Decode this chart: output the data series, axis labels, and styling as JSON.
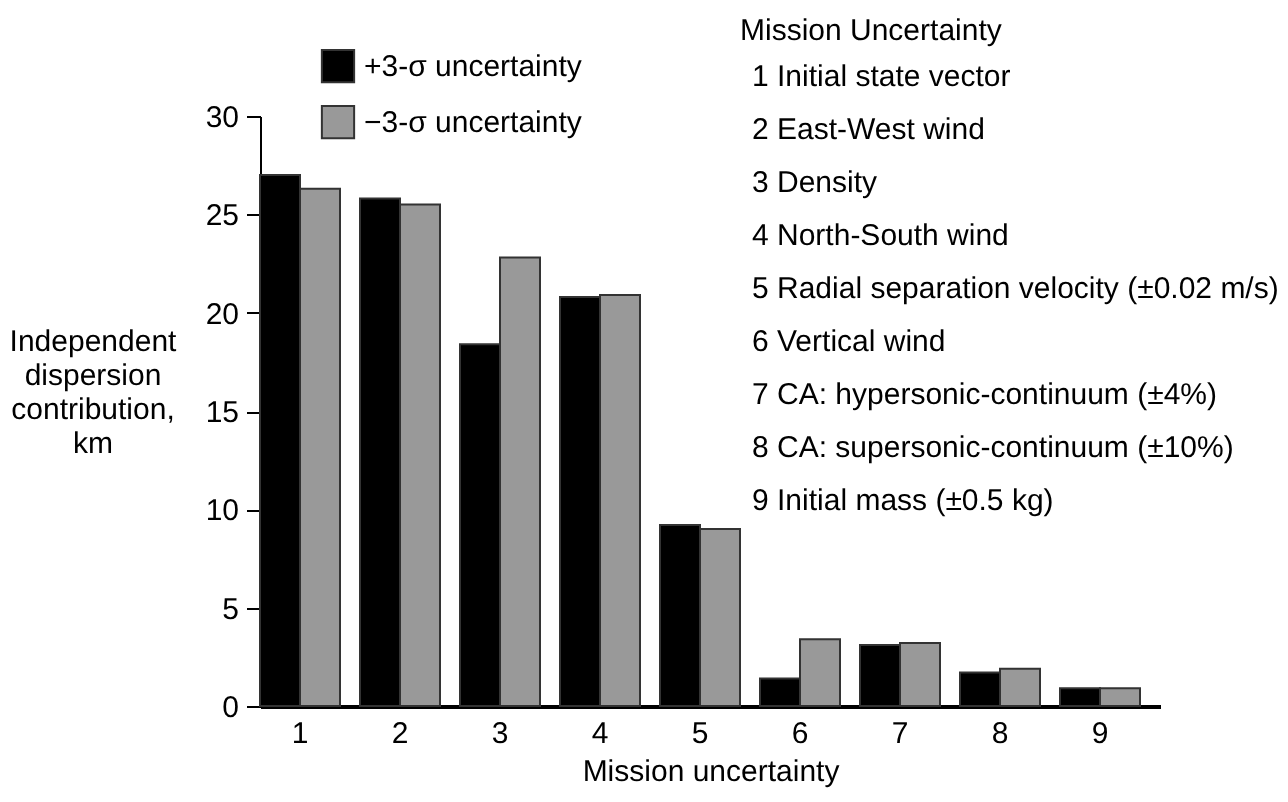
{
  "chart_data": {
    "type": "bar",
    "xlabel": "Mission uncertainty",
    "ylabel": "Independent dispersion contribution, km",
    "categories": [
      "1",
      "2",
      "3",
      "4",
      "5",
      "6",
      "7",
      "8",
      "9"
    ],
    "series": [
      {
        "name": "+3-σ uncertainty",
        "color": "#000000",
        "values": [
          27.0,
          25.8,
          18.4,
          20.8,
          9.2,
          1.4,
          3.1,
          1.7,
          0.9
        ]
      },
      {
        "name": "−3-σ uncertainty",
        "color": "#999999",
        "values": [
          26.3,
          25.5,
          22.8,
          20.9,
          9.0,
          3.4,
          3.2,
          1.9,
          0.9
        ]
      }
    ],
    "ylim": [
      0,
      30
    ],
    "yticks": [
      0,
      5,
      10,
      15,
      20,
      25,
      30
    ],
    "grid": false,
    "legend": "top left",
    "annotations": [
      "Mission Uncertainty",
      "1  Initial state vector",
      "2  East-West wind",
      "3  Density",
      "4  North-South wind",
      "5  Radial separation velocity (±0.02 m/s)",
      "6  Vertical wind",
      "7  CA: hypersonic-continuum (±4%)",
      "8  CA: supersonic-continuum (±10%)",
      "9  Initial mass (±0.5 kg)"
    ]
  }
}
